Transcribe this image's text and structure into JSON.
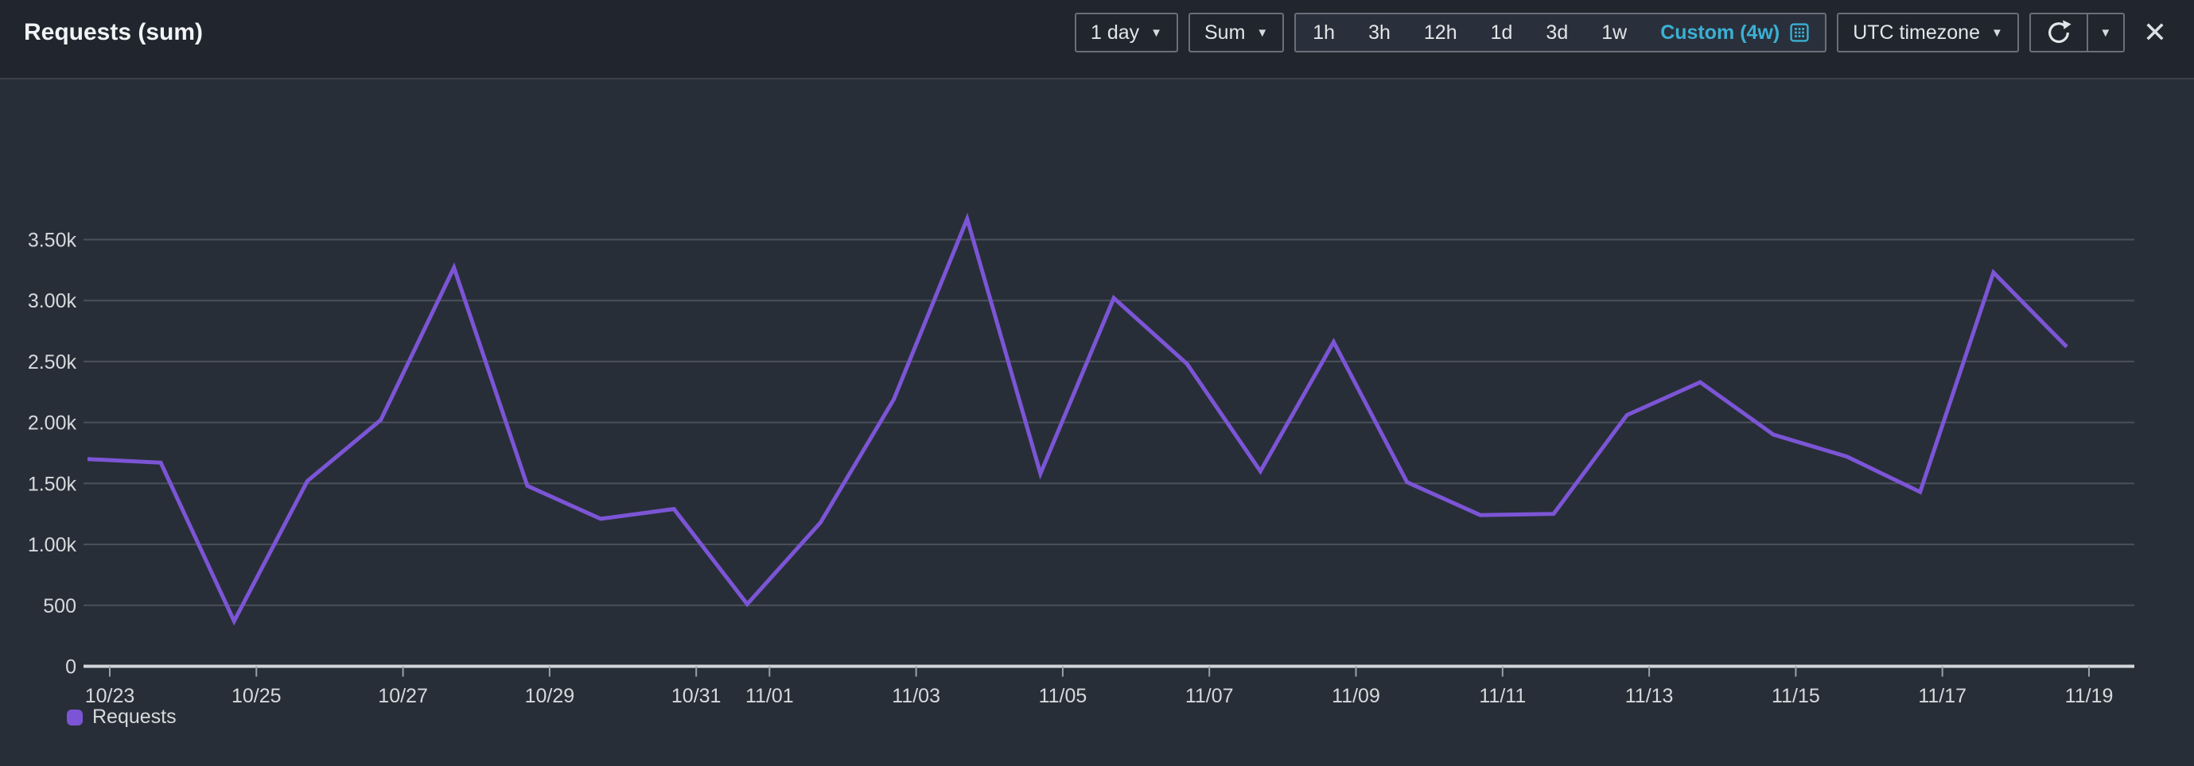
{
  "header": {
    "title": "Requests (sum)",
    "period_dropdown_label": "1 day",
    "statistic_dropdown_label": "Sum",
    "range_buttons": [
      "1h",
      "3h",
      "12h",
      "1d",
      "3d",
      "1w"
    ],
    "custom_range_label": "Custom (4w)",
    "timezone_dropdown_label": "UTC timezone"
  },
  "icons": {
    "caret_down": "▼",
    "close": "✕",
    "calendar": "calendar-grid",
    "refresh": "circular-arrow"
  },
  "colors": {
    "series_purple": "#7c55d6",
    "custom_link_cyan": "#3bb0d3"
  },
  "legend": {
    "label": "Requests"
  },
  "chart_data": {
    "type": "line",
    "title": "Requests (sum)",
    "x": [
      "10/23",
      "10/24",
      "10/25",
      "10/26",
      "10/27",
      "10/28",
      "10/29",
      "10/30",
      "10/31",
      "11/01",
      "11/02",
      "11/03",
      "11/04",
      "11/05",
      "11/06",
      "11/07",
      "11/08",
      "11/09",
      "11/10",
      "11/11",
      "11/12",
      "11/13",
      "11/14",
      "11/15",
      "11/16",
      "11/17",
      "11/18",
      "11/19"
    ],
    "series": [
      {
        "name": "Requests",
        "color": "#7c55d6",
        "values": [
          1700,
          1670,
          370,
          1520,
          2020,
          3270,
          1480,
          1210,
          1290,
          510,
          1180,
          2190,
          3670,
          1580,
          3020,
          2480,
          1600,
          2660,
          1510,
          1240,
          1250,
          2060,
          2330,
          1900,
          1720,
          1430,
          3230,
          2620
        ]
      }
    ],
    "x_tick_labels": [
      "10/23",
      "10/25",
      "10/27",
      "10/29",
      "10/31",
      "11/01",
      "11/03",
      "11/05",
      "11/07",
      "11/09",
      "11/11",
      "11/13",
      "11/15",
      "11/17",
      "11/19"
    ],
    "y_ticks": [
      0,
      500,
      1000,
      1500,
      2000,
      2500,
      3000,
      3500
    ],
    "y_tick_labels": [
      "0",
      "500",
      "1.00k",
      "1.50k",
      "2.00k",
      "2.50k",
      "3.00k",
      "3.50k"
    ],
    "ylim": [
      0,
      3800
    ],
    "grid": true,
    "legend_position": "bottom-left"
  }
}
